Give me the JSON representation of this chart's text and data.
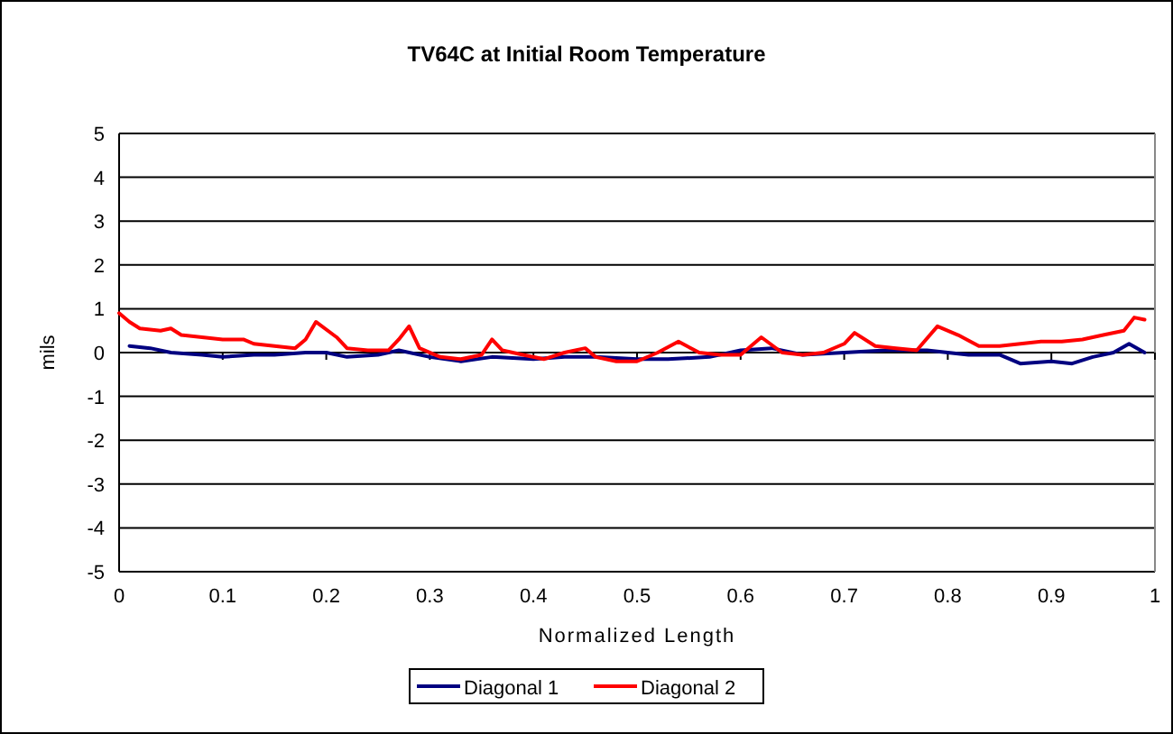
{
  "chart_data": {
    "type": "line",
    "title": "TV64C at Initial Room Temperature",
    "xlabel": "Normalized Length",
    "ylabel": "mils",
    "xlim": [
      0,
      1
    ],
    "xticks": [
      0,
      0.1,
      0.2,
      0.3,
      0.4,
      0.5,
      0.6,
      0.7,
      0.8,
      0.9,
      1
    ],
    "ylim": [
      -5,
      5
    ],
    "yticks": [
      -5,
      -4,
      -3,
      -2,
      -1,
      0,
      1,
      2,
      3,
      4,
      5
    ],
    "grid": "y",
    "legend": "bottom",
    "marker": "none",
    "line_style": "solid",
    "series": [
      {
        "name": "Diagonal 1",
        "color": "#000080",
        "x": [
          0.01,
          0.03,
          0.05,
          0.08,
          0.1,
          0.13,
          0.15,
          0.18,
          0.2,
          0.22,
          0.25,
          0.27,
          0.3,
          0.33,
          0.36,
          0.4,
          0.43,
          0.46,
          0.5,
          0.53,
          0.57,
          0.6,
          0.63,
          0.66,
          0.7,
          0.74,
          0.78,
          0.82,
          0.85,
          0.87,
          0.9,
          0.92,
          0.94,
          0.96,
          0.975,
          0.99
        ],
        "values": [
          0.15,
          0.1,
          0,
          -0.05,
          -0.1,
          -0.05,
          -0.05,
          0,
          0,
          -0.1,
          -0.05,
          0.05,
          -0.1,
          -0.2,
          -0.1,
          -0.15,
          -0.1,
          -0.1,
          -0.15,
          -0.15,
          -0.1,
          0.05,
          0.1,
          -0.05,
          0,
          0.05,
          0.05,
          -0.05,
          -0.05,
          -0.25,
          -0.2,
          -0.25,
          -0.1,
          0,
          0.2,
          0
        ]
      },
      {
        "name": "Diagonal 2",
        "color": "#ff0000",
        "x": [
          0,
          0.01,
          0.02,
          0.04,
          0.05,
          0.06,
          0.08,
          0.1,
          0.12,
          0.13,
          0.15,
          0.17,
          0.18,
          0.19,
          0.21,
          0.22,
          0.24,
          0.26,
          0.27,
          0.28,
          0.29,
          0.31,
          0.33,
          0.35,
          0.36,
          0.37,
          0.39,
          0.41,
          0.43,
          0.45,
          0.46,
          0.48,
          0.5,
          0.52,
          0.54,
          0.56,
          0.58,
          0.6,
          0.62,
          0.64,
          0.66,
          0.68,
          0.7,
          0.71,
          0.73,
          0.75,
          0.77,
          0.79,
          0.81,
          0.83,
          0.85,
          0.87,
          0.89,
          0.91,
          0.93,
          0.95,
          0.97,
          0.98,
          0.99
        ],
        "values": [
          0.9,
          0.7,
          0.55,
          0.5,
          0.55,
          0.4,
          0.35,
          0.3,
          0.3,
          0.2,
          0.15,
          0.1,
          0.3,
          0.7,
          0.35,
          0.1,
          0.05,
          0.05,
          0.3,
          0.6,
          0.1,
          -0.1,
          -0.15,
          -0.05,
          0.3,
          0.05,
          -0.05,
          -0.15,
          0,
          0.1,
          -0.1,
          -0.2,
          -0.2,
          0,
          0.25,
          0,
          -0.05,
          -0.05,
          0.35,
          0,
          -0.05,
          0,
          0.2,
          0.45,
          0.15,
          0.1,
          0.05,
          0.6,
          0.4,
          0.15,
          0.15,
          0.2,
          0.25,
          0.25,
          0.3,
          0.4,
          0.5,
          0.8,
          0.75
        ]
      }
    ]
  }
}
